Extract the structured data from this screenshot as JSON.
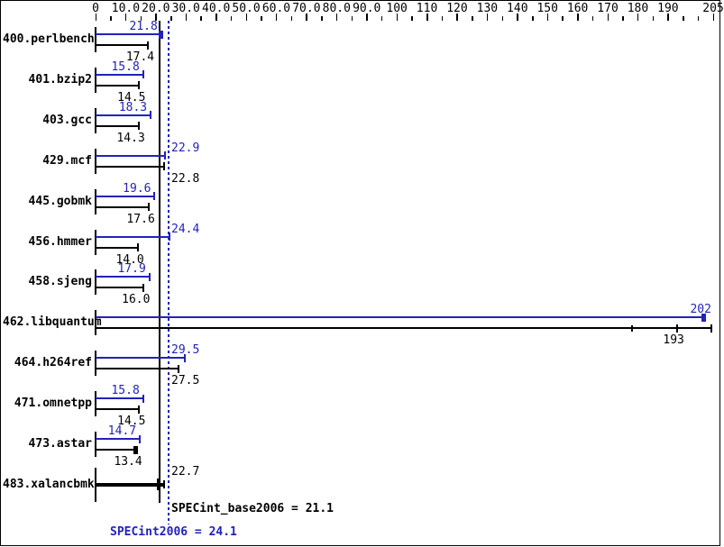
{
  "chart_data": {
    "type": "bar",
    "orientation": "horizontal",
    "title": "",
    "axis": {
      "min": 0,
      "max": 205,
      "minor_step": 5,
      "major_tick_values": [
        0,
        10,
        20,
        30,
        40,
        50,
        60,
        70,
        80,
        90,
        100,
        110,
        120,
        130,
        140,
        150,
        160,
        170,
        180,
        190,
        205
      ],
      "major_tick_labels": [
        "0",
        "10.0",
        "20.0",
        "30.0",
        "40.0",
        "50.0",
        "60.0",
        "70.0",
        "80.0",
        "90.0",
        "100",
        "110",
        "120",
        "130",
        "140",
        "150",
        "160",
        "170",
        "180",
        "190",
        "205"
      ]
    },
    "colors": {
      "peak": "#2222bb",
      "base": "#000000",
      "background": "#ffffff",
      "frame": "#000000"
    },
    "ref_lines": [
      {
        "name": "base-mean",
        "label": "SPECint_base2006 = 21.1",
        "value": 21.1,
        "color": "#000000",
        "style": "solid"
      },
      {
        "name": "peak-mean",
        "label": "SPECint2006 = 24.1",
        "value": 24.1,
        "color": "#2222bb",
        "style": "dotted"
      }
    ],
    "benchmarks": [
      {
        "name": "400.perlbench",
        "peak": 21.8,
        "peak_label": "21.8",
        "base": 17.4,
        "base_label": "17.4",
        "peak_cap": "thick"
      },
      {
        "name": "401.bzip2",
        "peak": 15.8,
        "peak_label": "15.8",
        "base": 14.5,
        "base_label": "14.5"
      },
      {
        "name": "403.gcc",
        "peak": 18.3,
        "peak_label": "18.3",
        "base": 14.3,
        "base_label": "14.3"
      },
      {
        "name": "429.mcf",
        "peak": 22.9,
        "peak_label": "22.9",
        "base": 22.8,
        "base_label": "22.8"
      },
      {
        "name": "445.gobmk",
        "peak": 19.6,
        "peak_label": "19.6",
        "base": 17.6,
        "base_label": "17.6"
      },
      {
        "name": "456.hmmer",
        "peak": 24.4,
        "peak_label": "24.4",
        "base": 14.0,
        "base_label": "14.0"
      },
      {
        "name": "458.sjeng",
        "peak": 17.9,
        "peak_label": "17.9",
        "base": 16.0,
        "base_label": "16.0"
      },
      {
        "name": "462.libquantum",
        "peak": 202,
        "peak_label": "202",
        "base": 193,
        "base_label": "193",
        "peak_cap": "thick",
        "base_marks": [
          178
        ],
        "base_extend": 205
      },
      {
        "name": "464.h264ref",
        "peak": 29.5,
        "peak_label": "29.5",
        "base": 27.5,
        "base_label": "27.5"
      },
      {
        "name": "471.omnetpp",
        "peak": 15.8,
        "peak_label": "15.8",
        "base": 14.5,
        "base_label": "14.5"
      },
      {
        "name": "473.astar",
        "peak": 14.7,
        "peak_label": "14.7",
        "base": 13.4,
        "base_label": "13.4",
        "base_cap": "thick"
      },
      {
        "name": "483.xalancbmk",
        "peak": null,
        "peak_label": "",
        "base": 22.7,
        "base_label": "22.7",
        "single_thick_bar": true,
        "base_marks": [
          20.7
        ],
        "base_label_band": "top"
      }
    ]
  }
}
